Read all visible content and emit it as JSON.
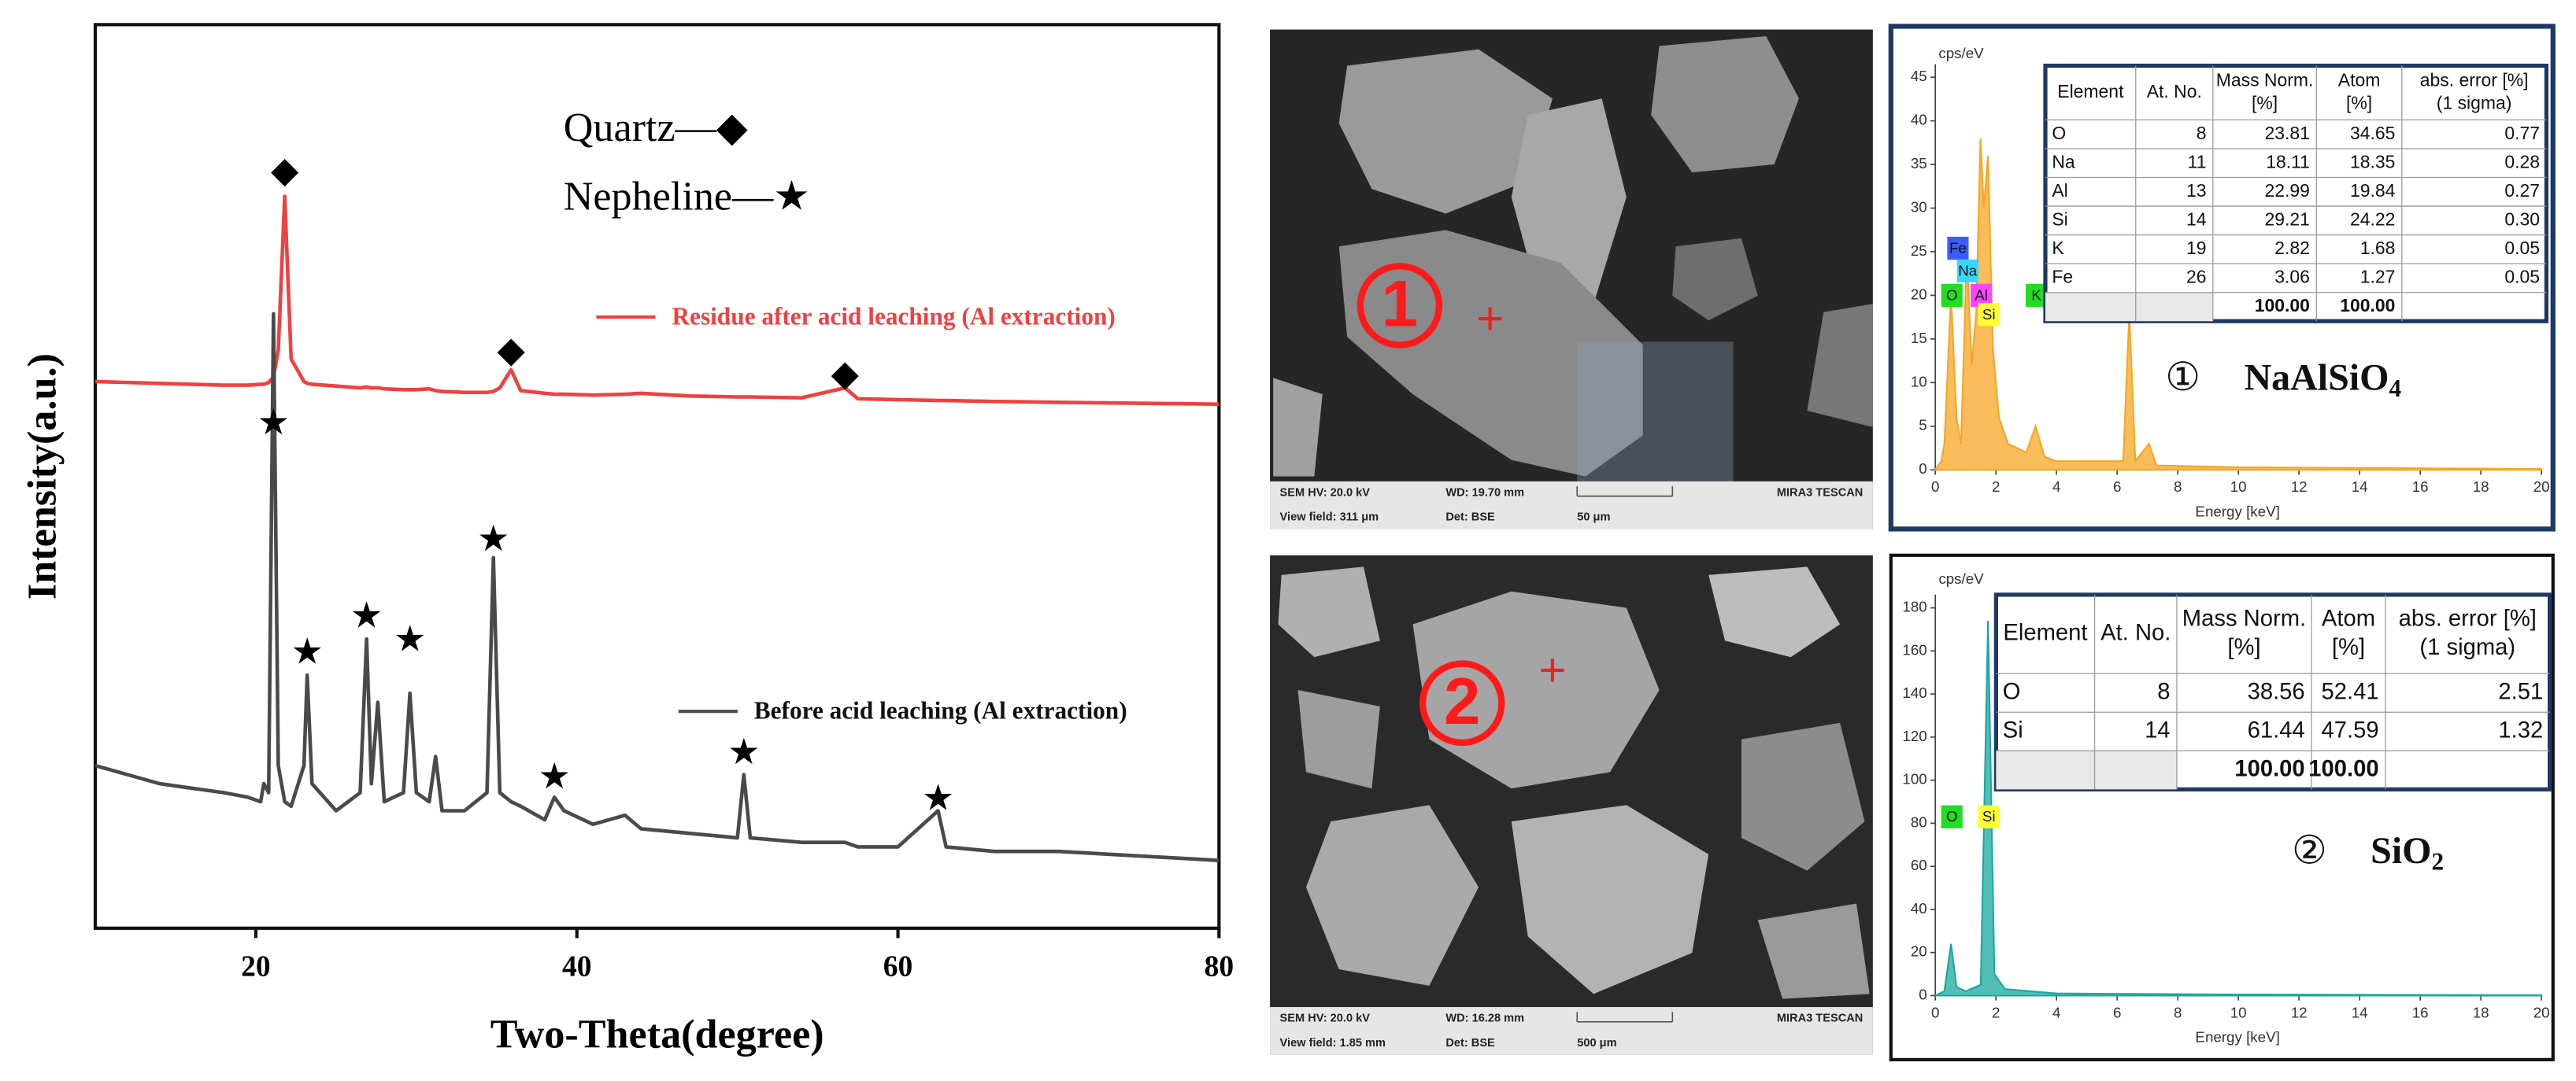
{
  "chart_data": [
    {
      "type": "line",
      "xlabel": "Two-Theta(degree)",
      "ylabel": "Intensity(a.u.)",
      "xlim": [
        10,
        80
      ],
      "xticks": [
        20,
        40,
        60,
        80
      ],
      "ylim": [
        0,
        100
      ],
      "x": [
        10,
        12,
        14,
        16,
        18,
        19.5,
        20.3,
        20.5,
        20.8,
        21.1,
        21.4,
        21.8,
        22.2,
        23,
        23.2,
        23.5,
        25,
        26.5,
        26.9,
        27.2,
        27.6,
        28,
        29.2,
        29.6,
        30,
        30.8,
        31.2,
        31.6,
        33,
        34.4,
        34.8,
        35.2,
        35.9,
        36.5,
        38,
        38.6,
        39.2,
        41,
        43,
        44,
        47,
        50,
        50.4,
        50.8,
        54,
        56.7,
        57.5,
        60,
        62.5,
        63,
        66,
        70,
        75,
        80
      ],
      "series": [
        {
          "name": "Residue after acid leaching (Al extraction)",
          "color": "#f04040",
          "values": [
            60.5,
            60.4,
            60.3,
            60.2,
            60.1,
            60.1,
            60.2,
            60.2,
            60.4,
            61,
            64,
            81,
            63,
            60.5,
            60.3,
            60.2,
            60,
            59.8,
            59.9,
            59.8,
            59.8,
            59.7,
            59.6,
            59.6,
            59.6,
            59.7,
            59.5,
            59.4,
            59.3,
            59.3,
            59.4,
            59.8,
            61.8,
            59.5,
            59.2,
            59.1,
            59.1,
            59,
            59.1,
            59.2,
            58.9,
            58.8,
            58.8,
            58.8,
            58.7,
            59.8,
            58.6,
            58.5,
            58.4,
            58.4,
            58.3,
            58.2,
            58.1,
            58
          ]
        },
        {
          "name": "Before acid leaching (Al extraction)",
          "color": "#4a4a4a",
          "values": [
            18,
            17,
            16,
            15.5,
            15,
            14.5,
            14,
            16,
            15,
            68,
            18,
            14,
            13.5,
            18,
            28,
            16,
            13,
            15,
            32,
            16,
            25,
            14,
            15,
            26,
            15,
            14,
            19,
            13,
            13,
            15,
            41,
            15,
            14,
            13.5,
            12,
            14.5,
            13,
            11.5,
            12.5,
            11,
            10.5,
            10,
            17,
            10,
            9.5,
            9.5,
            9,
            9,
            13,
            9,
            8.5,
            8.5,
            8,
            7.5
          ]
        }
      ],
      "phase_key": [
        "Quartz—◆",
        "Nepheline—★"
      ],
      "annotations": [
        {
          "text": "◆",
          "x": 21.8,
          "y": 83.5
        },
        {
          "text": "◆",
          "x": 35.9,
          "y": 63.6
        },
        {
          "text": "◆",
          "x": 56.7,
          "y": 61
        },
        {
          "text": "★",
          "x": 21.1,
          "y": 55.6
        },
        {
          "text": "★",
          "x": 23.2,
          "y": 30.2
        },
        {
          "text": "★",
          "x": 26.9,
          "y": 34.2
        },
        {
          "text": "★",
          "x": 29.6,
          "y": 31.6
        },
        {
          "text": "★",
          "x": 34.8,
          "y": 42.7
        },
        {
          "text": "★",
          "x": 38.6,
          "y": 16.4
        },
        {
          "text": "★",
          "x": 50.4,
          "y": 19.1
        },
        {
          "text": "★",
          "x": 62.5,
          "y": 14
        }
      ]
    },
    {
      "type": "area",
      "ylabel": "cps/eV",
      "xlabel": "Energy [keV]",
      "color": "#f5a623",
      "xlim": [
        0,
        20
      ],
      "xticks": [
        0,
        2,
        4,
        6,
        8,
        10,
        12,
        14,
        16,
        18,
        20
      ],
      "ylim": [
        0,
        45
      ],
      "yticks": [
        0,
        5,
        10,
        15,
        20,
        25,
        30,
        35,
        40,
        45
      ],
      "x": [
        0,
        0.2,
        0.3,
        0.52,
        0.7,
        0.85,
        1.04,
        1.2,
        1.35,
        1.49,
        1.6,
        1.74,
        1.9,
        2.1,
        2.4,
        3.0,
        3.31,
        3.6,
        4,
        6.2,
        6.4,
        6.6,
        7.05,
        7.3,
        10,
        20
      ],
      "values": [
        0,
        1,
        3,
        20,
        6,
        3,
        25,
        12,
        18,
        38,
        30,
        36,
        14,
        6,
        3,
        2,
        5,
        1.5,
        1,
        1,
        18,
        1,
        3,
        0.5,
        0.3,
        0.1
      ],
      "annotations": [
        {
          "text": "Fe",
          "x": 0.72,
          "y": 25.4,
          "color": "#3b5bff"
        },
        {
          "text": "Na",
          "x": 1.04,
          "y": 22.8,
          "color": "#36d7ff"
        },
        {
          "text": "O",
          "x": 0.52,
          "y": 20,
          "color": "#22dd22"
        },
        {
          "text": "Al",
          "x": 1.49,
          "y": 20,
          "color": "#ff44ff"
        },
        {
          "text": "Si",
          "x": 1.74,
          "y": 17.8,
          "color": "#ffff33"
        },
        {
          "text": "K",
          "x": 3.31,
          "y": 20,
          "color": "#22dd22"
        }
      ]
    },
    {
      "type": "area",
      "ylabel": "cps/eV",
      "xlabel": "Energy [keV]",
      "color": "#1aa8a0",
      "xlim": [
        0,
        20
      ],
      "xticks": [
        0,
        2,
        4,
        6,
        8,
        10,
        12,
        14,
        16,
        18,
        20
      ],
      "ylim": [
        0,
        180
      ],
      "yticks": [
        0,
        20,
        40,
        60,
        80,
        100,
        120,
        140,
        160,
        180
      ],
      "x": [
        0,
        0.3,
        0.52,
        0.7,
        1.0,
        1.5,
        1.74,
        1.95,
        2.3,
        4,
        10,
        20
      ],
      "values": [
        0,
        2,
        24,
        4,
        2,
        5,
        174,
        10,
        3,
        1,
        0.5,
        0.2
      ],
      "annotations": [
        {
          "text": "O",
          "x": 0.52,
          "y": 83,
          "color": "#22dd22"
        },
        {
          "text": "Si",
          "x": 1.74,
          "y": 83,
          "color": "#ffff33"
        }
      ]
    }
  ],
  "tables": [
    {
      "headers": [
        [
          "Element"
        ],
        [
          "At. No."
        ],
        [
          "Mass Norm.",
          "[%]"
        ],
        [
          "Atom",
          "[%]"
        ],
        [
          "abs. error [%]",
          "(1 sigma)"
        ]
      ],
      "rows": [
        [
          "O",
          "8",
          "23.81",
          "34.65",
          "0.77"
        ],
        [
          "Na",
          "11",
          "18.11",
          "18.35",
          "0.28"
        ],
        [
          "Al",
          "13",
          "22.99",
          "19.84",
          "0.27"
        ],
        [
          "Si",
          "14",
          "29.21",
          "24.22",
          "0.30"
        ],
        [
          "K",
          "19",
          "2.82",
          "1.68",
          "0.05"
        ],
        [
          "Fe",
          "26",
          "3.06",
          "1.27",
          "0.05"
        ]
      ],
      "total": {
        "mass": "100.00",
        "atom": "100.00"
      }
    },
    {
      "headers": [
        [
          "Element"
        ],
        [
          "At. No."
        ],
        [
          "Mass Norm.",
          "[%]"
        ],
        [
          "Atom",
          "[%]"
        ],
        [
          "abs. error [%]",
          "(1 sigma)"
        ]
      ],
      "rows": [
        [
          "O",
          "8",
          "38.56",
          "52.41",
          "2.51"
        ],
        [
          "Si",
          "14",
          "61.44",
          "47.59",
          "1.32"
        ]
      ],
      "total": {
        "mass": "100.00",
        "atom": "100.00"
      }
    }
  ],
  "compounds": [
    {
      "marker": "①",
      "formula": "NaAlSiO",
      "subscript": "4"
    },
    {
      "marker": "②",
      "formula": "SiO",
      "subscript": "2"
    }
  ],
  "sem_images": [
    {
      "marker": "1",
      "hv": "SEM HV: 20.0 kV",
      "wd": "WD: 19.70 mm",
      "brand": "MIRA3 TESCAN",
      "view": "View field: 311 μm",
      "det": "Det: BSE",
      "scale": "50 μm"
    },
    {
      "marker": "2",
      "hv": "SEM HV: 20.0 kV",
      "wd": "WD: 16.28 mm",
      "brand": "MIRA3 TESCAN",
      "view": "View field: 1.85 mm",
      "det": "Det: BSE",
      "scale": "500 μm"
    }
  ]
}
